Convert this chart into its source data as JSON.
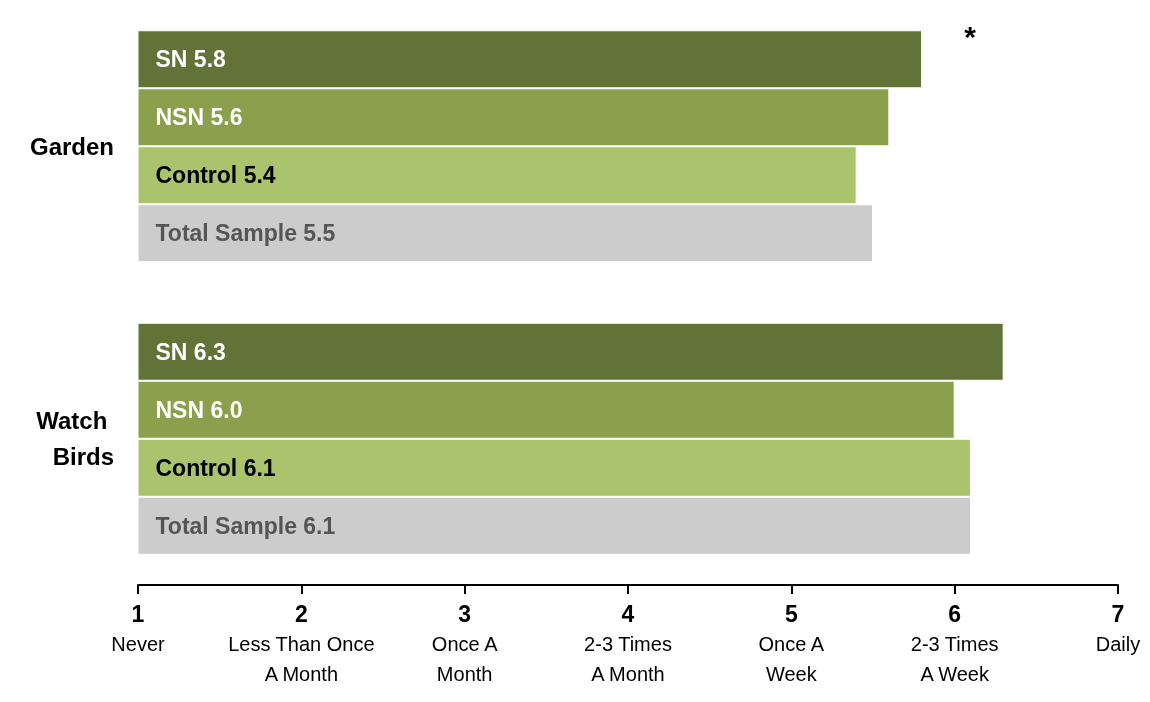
{
  "chart_data": {
    "type": "bar",
    "orientation": "horizontal",
    "categories": [
      "Garden",
      "Watch Birds"
    ],
    "series": [
      {
        "name": "SN",
        "color": "#617337",
        "values": [
          5.8,
          6.3
        ],
        "value_labels": [
          "5.8",
          "6.3"
        ]
      },
      {
        "name": "NSN",
        "color": "#8aa04c",
        "values": [
          5.6,
          6.0
        ],
        "value_labels": [
          "5.6",
          "6.0"
        ]
      },
      {
        "name": "Control",
        "color": "#aac46e",
        "values": [
          5.4,
          6.1
        ],
        "value_labels": [
          "5.4",
          "6.1"
        ]
      },
      {
        "name": "Total Sample",
        "color": "#cccccc",
        "values": [
          5.5,
          6.1
        ],
        "value_labels": [
          "5.5",
          "6.1"
        ]
      }
    ],
    "xlim": [
      1,
      7
    ],
    "xticks": [
      {
        "value": 1,
        "label": "1\nNever"
      },
      {
        "value": 2,
        "label": "2\nLess Than Once\nA Month"
      },
      {
        "value": 3,
        "label": "3\nOnce A\nMonth"
      },
      {
        "value": 4,
        "label": "4\n2-3 Times\nA Month"
      },
      {
        "value": 5,
        "label": "5\nOnce A\nWeek"
      },
      {
        "value": 6,
        "label": "6\n2-3 Times\nA Week"
      },
      {
        "value": 7,
        "label": "7\nDaily"
      }
    ],
    "annotations": [
      "*"
    ],
    "grid": false,
    "legend": false
  }
}
